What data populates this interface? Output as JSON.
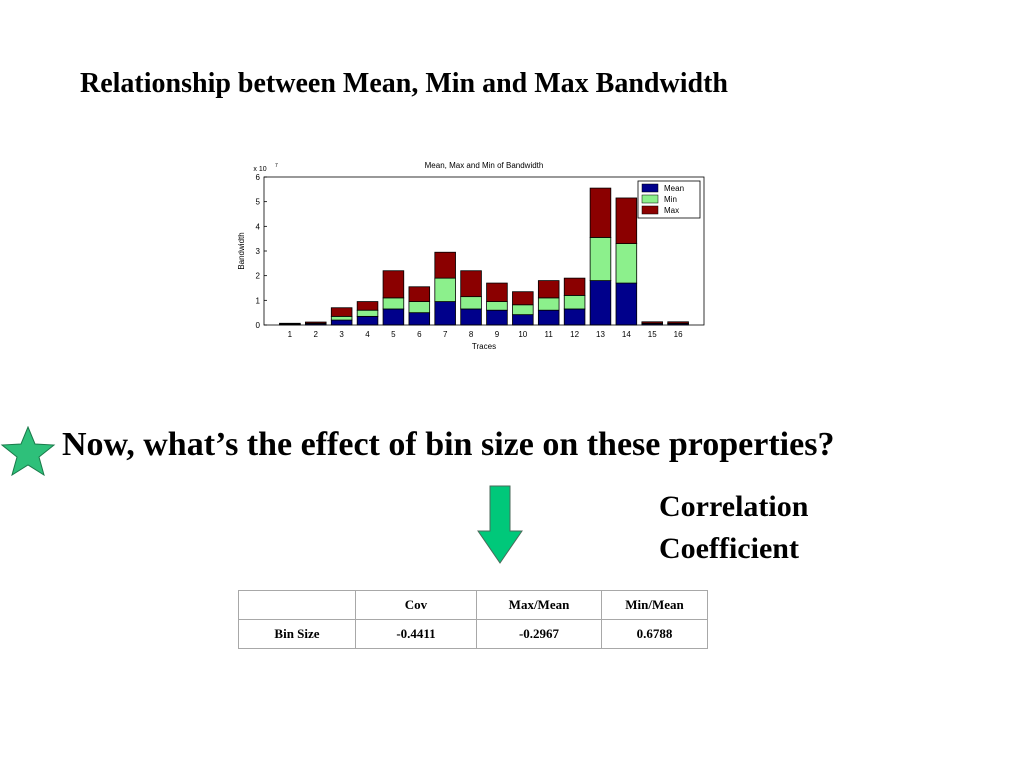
{
  "slide": {
    "title": "Relationship between Mean, Min and Max Bandwidth",
    "question": "Now, what’s the effect of bin size on these properties?",
    "note_line1": "Correlation",
    "note_line2": "Coefficient",
    "star_icon": "star-icon",
    "arrow_icon": "arrow-down-icon",
    "star_color": "#2ec07a",
    "arrow_color": "#00c87a"
  },
  "chart_data": {
    "type": "bar",
    "stacked": true,
    "title": "Mean, Max and Min of Bandwidth",
    "xlabel": "Traces",
    "ylabel": "Bandwidth",
    "y_multiplier": "x 10",
    "y_exponent": "7",
    "ylim": [
      0,
      6
    ],
    "yticks": [
      "0",
      "1",
      "2",
      "3",
      "4",
      "5",
      "6"
    ],
    "categories": [
      "1",
      "2",
      "3",
      "4",
      "5",
      "6",
      "7",
      "8",
      "9",
      "10",
      "11",
      "12",
      "13",
      "14",
      "15",
      "16"
    ],
    "legend_position": "top-right",
    "grid": false,
    "series": [
      {
        "name": "Mean",
        "color": "#00008b",
        "values": [
          0.03,
          0.05,
          0.2,
          0.35,
          0.65,
          0.5,
          0.95,
          0.65,
          0.6,
          0.42,
          0.6,
          0.65,
          1.8,
          1.7,
          0.05,
          0.05
        ]
      },
      {
        "name": "Min",
        "color": "#8cf08c",
        "values": [
          0.01,
          0.02,
          0.15,
          0.25,
          0.45,
          0.45,
          0.95,
          0.5,
          0.35,
          0.4,
          0.5,
          0.55,
          1.75,
          1.6,
          0.02,
          0.02
        ]
      },
      {
        "name": "Max",
        "color": "#8b0000",
        "values": [
          0.03,
          0.05,
          0.35,
          0.35,
          1.1,
          0.6,
          1.05,
          1.05,
          0.75,
          0.53,
          0.7,
          0.7,
          2.0,
          1.85,
          0.06,
          0.06
        ]
      }
    ]
  },
  "table": {
    "headers": [
      "",
      "Cov",
      "Max/Mean",
      "Min/Mean"
    ],
    "row_label": "Bin Size",
    "values": [
      "-0.4411",
      "-0.2967",
      "0.6788"
    ]
  }
}
